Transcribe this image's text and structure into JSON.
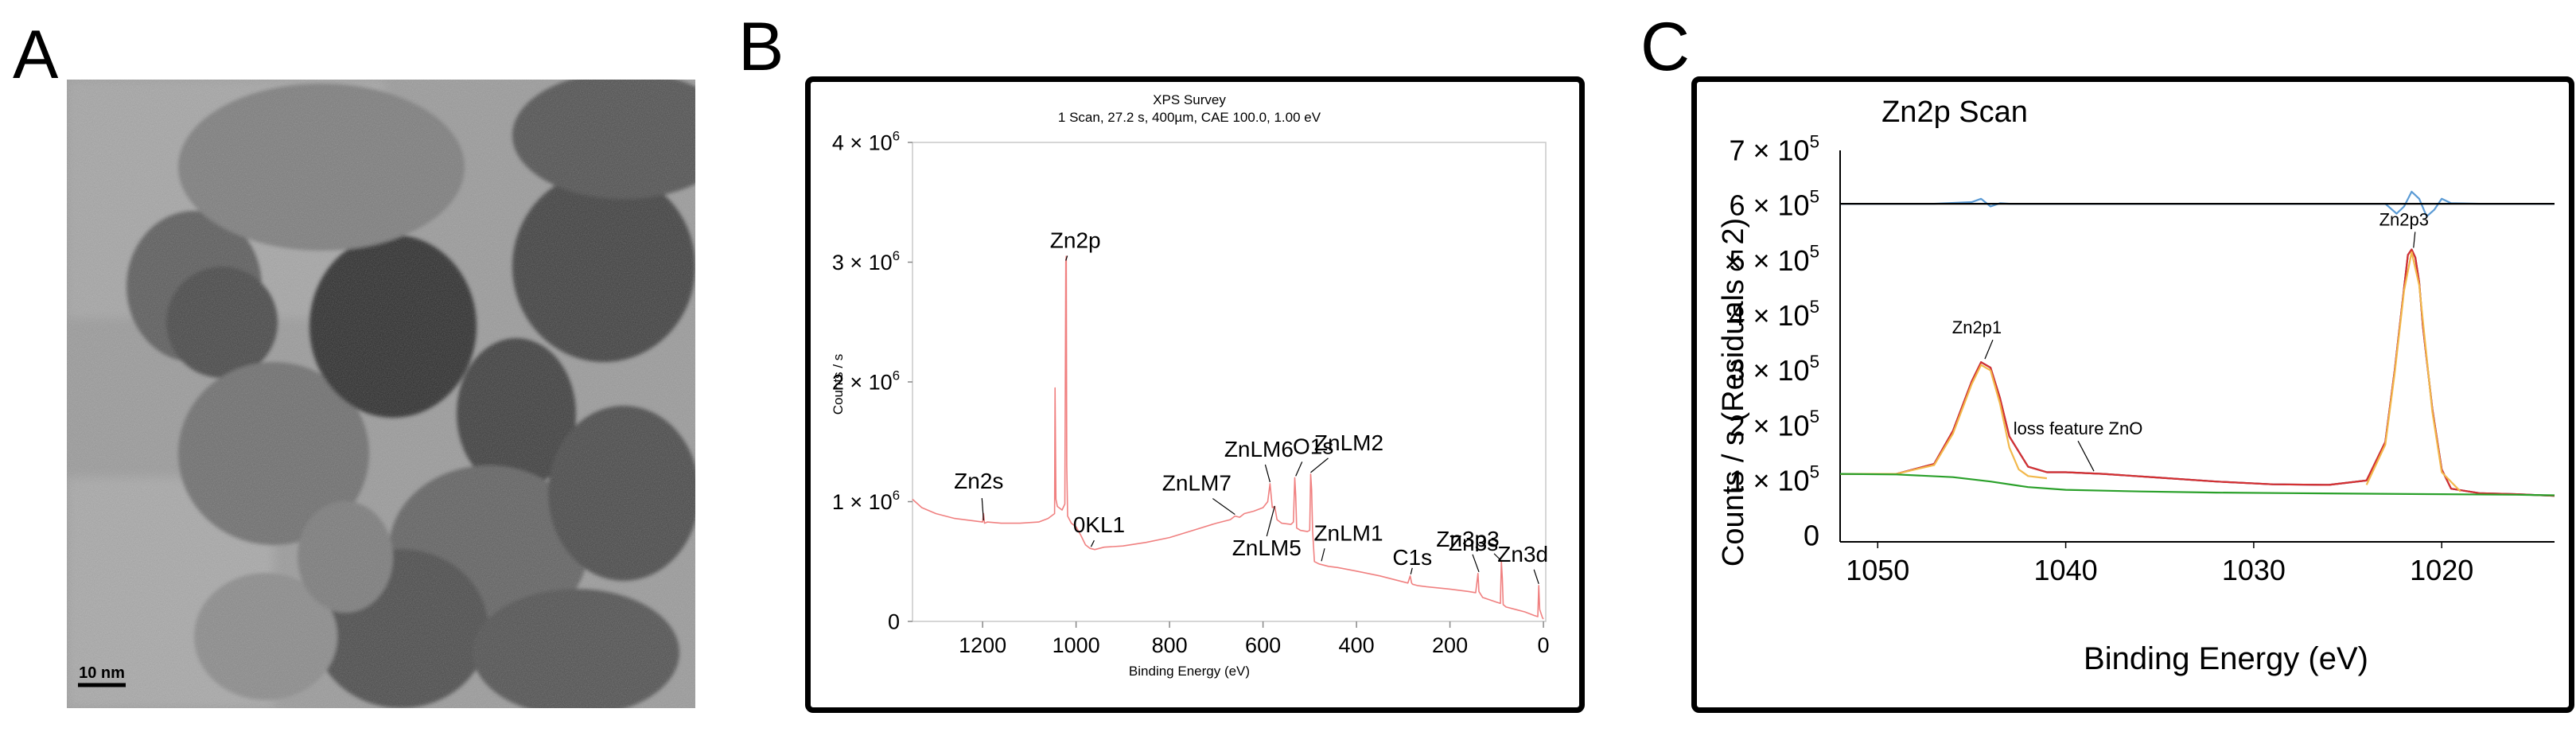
{
  "panels": {
    "a": "A",
    "b": "B",
    "c": "C"
  },
  "tem": {
    "scale_label": "10 nm"
  },
  "chart_data": [
    {
      "type": "line",
      "panel": "B",
      "title": "XPS Survey",
      "subtitle": "1 Scan,  27.2 s,  400µm,  CAE 100.0,  1.00 eV",
      "xlabel": "Binding Energy (eV)",
      "ylabel": "Counts / s",
      "xlim": [
        1350,
        -5
      ],
      "ylim": [
        0,
        4000000
      ],
      "x_reversed": true,
      "xticks": [
        1200,
        1000,
        800,
        600,
        400,
        200,
        0
      ],
      "yticks": [
        {
          "value": 0,
          "label": "0"
        },
        {
          "value": 1000000,
          "label": "1 × 10",
          "exp": "6"
        },
        {
          "value": 2000000,
          "label": "2 × 10",
          "exp": "6"
        },
        {
          "value": 3000000,
          "label": "3 × 10",
          "exp": "6"
        },
        {
          "value": 4000000,
          "label": "4 × 10",
          "exp": "6"
        }
      ],
      "grid": false,
      "series": [
        {
          "color": "#f08080",
          "x": [
            1350,
            1330,
            1300,
            1260,
            1220,
            1200,
            1198,
            1196,
            1190,
            1160,
            1120,
            1080,
            1060,
            1046,
            1045,
            1043,
            1040,
            1030,
            1024,
            1022,
            1021,
            1020,
            1018,
            1010,
            1000,
            990,
            980,
            970,
            960,
            940,
            900,
            850,
            800,
            750,
            700,
            670,
            660,
            650,
            640,
            620,
            600,
            590,
            585,
            580,
            575,
            570,
            560,
            540,
            535,
            532,
            530,
            528,
            520,
            505,
            500,
            498,
            496,
            494,
            490,
            480,
            470,
            460,
            440,
            400,
            350,
            300,
            290,
            285,
            282,
            280,
            270,
            250,
            200,
            160,
            145,
            140,
            138,
            130,
            100,
            92,
            90,
            88,
            86,
            80,
            40,
            20,
            12,
            10,
            8,
            2,
            0
          ],
          "y": [
            1020000,
            950000,
            900000,
            860000,
            840000,
            830000,
            900000,
            820000,
            830000,
            820000,
            820000,
            830000,
            860000,
            900000,
            1950000,
            1020000,
            960000,
            930000,
            980000,
            3000000,
            3050000,
            1300000,
            880000,
            820000,
            790000,
            720000,
            640000,
            610000,
            600000,
            620000,
            630000,
            660000,
            700000,
            760000,
            820000,
            850000,
            880000,
            870000,
            900000,
            920000,
            950000,
            1000000,
            1150000,
            950000,
            960000,
            850000,
            820000,
            810000,
            830000,
            1200000,
            1050000,
            780000,
            760000,
            750000,
            760000,
            1230000,
            1100000,
            760000,
            500000,
            480000,
            470000,
            460000,
            450000,
            420000,
            380000,
            330000,
            320000,
            380000,
            320000,
            310000,
            300000,
            290000,
            270000,
            250000,
            240000,
            400000,
            250000,
            200000,
            160000,
            150000,
            500000,
            360000,
            140000,
            120000,
            80000,
            50000,
            40000,
            300000,
            100000,
            30000,
            20000
          ]
        }
      ],
      "annotations": [
        {
          "text": "Zn2s",
          "x": 1198,
          "y": 830000
        },
        {
          "text": "Zn2p",
          "x": 1022,
          "y": 3000000
        },
        {
          "text": "0KL1",
          "x": 968,
          "y": 610000
        },
        {
          "text": "ZnLM7",
          "x": 660,
          "y": 880000
        },
        {
          "text": "ZnLM6",
          "x": 585,
          "y": 1150000
        },
        {
          "text": "ZnLM5",
          "x": 575,
          "y": 950000
        },
        {
          "text": "O1s",
          "x": 530,
          "y": 1200000
        },
        {
          "text": "ZnLM2",
          "x": 498,
          "y": 1230000
        },
        {
          "text": "ZnLM1",
          "x": 475,
          "y": 490000
        },
        {
          "text": "C1s",
          "x": 284,
          "y": 380000
        },
        {
          "text": "Zn3p3",
          "x": 138,
          "y": 400000
        },
        {
          "text": "Zn3s",
          "x": 92,
          "y": 500000
        },
        {
          "text": "Zn3d",
          "x": 10,
          "y": 300000
        }
      ]
    },
    {
      "type": "line",
      "panel": "C",
      "title": "Zn2p Scan",
      "xlabel": "Binding Energy (eV)",
      "ylabel": "Counts / s  (Residuals × 2)",
      "xlim": [
        1052,
        1014
      ],
      "ylim": [
        0,
        700000
      ],
      "x_reversed": true,
      "xticks": [
        1050,
        1040,
        1030,
        1020
      ],
      "yticks": [
        {
          "value": 0,
          "label": "0"
        },
        {
          "value": 100000,
          "label": "1 × 10",
          "exp": "5"
        },
        {
          "value": 200000,
          "label": "2 × 10",
          "exp": "5"
        },
        {
          "value": 300000,
          "label": "3 × 10",
          "exp": "5"
        },
        {
          "value": 400000,
          "label": "4 × 10",
          "exp": "5"
        },
        {
          "value": 500000,
          "label": "5 × 10",
          "exp": "5"
        },
        {
          "value": 600000,
          "label": "6 × 10",
          "exp": "5"
        },
        {
          "value": 700000,
          "label": "7 × 10",
          "exp": "5"
        }
      ],
      "grid": false,
      "series": [
        {
          "color": "#2d1f6e",
          "x": [
            1052,
            1049,
            1047,
            1046,
            1045,
            1044.5,
            1044,
            1043.5,
            1043,
            1042,
            1041,
            1040,
            1038,
            1035,
            1032,
            1029,
            1026,
            1024,
            1023,
            1022.5,
            1022,
            1021.8,
            1021.6,
            1021.4,
            1021.2,
            1021,
            1020.5,
            1020,
            1019.5,
            1018,
            1016,
            1014
          ],
          "y": [
            112000,
            112000,
            130000,
            190000,
            280000,
            315000,
            305000,
            250000,
            180000,
            125000,
            115000,
            115000,
            112000,
            105000,
            98000,
            93000,
            92000,
            100000,
            170000,
            300000,
            450000,
            510000,
            520000,
            505000,
            460000,
            380000,
            230000,
            120000,
            85000,
            77000,
            75000,
            72000
          ]
        },
        {
          "color": "#d63131",
          "x": [
            1052,
            1049,
            1047,
            1046,
            1045,
            1044.5,
            1044,
            1043.5,
            1043,
            1042,
            1041,
            1040,
            1038,
            1035,
            1032,
            1029,
            1026,
            1024,
            1023,
            1022.5,
            1022,
            1021.8,
            1021.6,
            1021.4,
            1021.2,
            1021,
            1020.5,
            1020,
            1019.5,
            1018,
            1016,
            1014
          ],
          "y": [
            112000,
            112000,
            130000,
            190000,
            280000,
            315000,
            305000,
            250000,
            180000,
            125000,
            115000,
            115000,
            112000,
            105000,
            98000,
            93000,
            92000,
            100000,
            170000,
            300000,
            450000,
            510000,
            520000,
            505000,
            460000,
            380000,
            230000,
            120000,
            85000,
            77000,
            75000,
            72000
          ]
        },
        {
          "color": "#f2b84b",
          "x": [
            1052,
            1049,
            1047,
            1046,
            1045,
            1044.5,
            1044,
            1043.5,
            1043,
            1042.5,
            1042,
            1041
          ],
          "y": [
            112000,
            112000,
            128000,
            185000,
            275000,
            310000,
            300000,
            240000,
            160000,
            120000,
            108000,
            104000
          ]
        },
        {
          "color": "#f2b84b",
          "x": [
            1024,
            1023,
            1022.5,
            1022,
            1021.6,
            1021.2,
            1020.5,
            1020,
            1019
          ],
          "y": [
            92000,
            165000,
            295000,
            445000,
            515000,
            455000,
            225000,
            115000,
            80000
          ]
        },
        {
          "color": "#2aa02a",
          "x": [
            1052,
            1049,
            1046,
            1044,
            1042,
            1040,
            1036,
            1032,
            1028,
            1024,
            1020,
            1016,
            1014
          ],
          "y": [
            112000,
            111000,
            106000,
            98000,
            88000,
            83000,
            80000,
            78000,
            77000,
            76000,
            75000,
            74000,
            73000
          ]
        },
        {
          "color": "#5b9bd5",
          "x": [
            1052,
            1047,
            1045,
            1044.5,
            1044,
            1043.5,
            1043,
            1040,
            1030,
            1023,
            1022.4,
            1022,
            1021.6,
            1021.2,
            1020.8,
            1020.4,
            1020,
            1019.5,
            1018,
            1014
          ],
          "y": [
            603000,
            603000,
            606000,
            612000,
            598000,
            604000,
            603000,
            603000,
            603000,
            603000,
            585000,
            598000,
            625000,
            612000,
            580000,
            592000,
            612000,
            604000,
            603000,
            603000
          ]
        },
        {
          "color": "#000000",
          "x": [
            1052,
            1014
          ],
          "y": [
            603000,
            603000
          ]
        }
      ],
      "annotations": [
        {
          "text": "Zn2p1",
          "x": 1044.3,
          "y": 318000
        },
        {
          "text": "Zn2p3",
          "x": 1021.5,
          "y": 520000
        },
        {
          "text": "loss feature ZnO",
          "x": 1038.5,
          "y": 114000
        }
      ]
    }
  ]
}
